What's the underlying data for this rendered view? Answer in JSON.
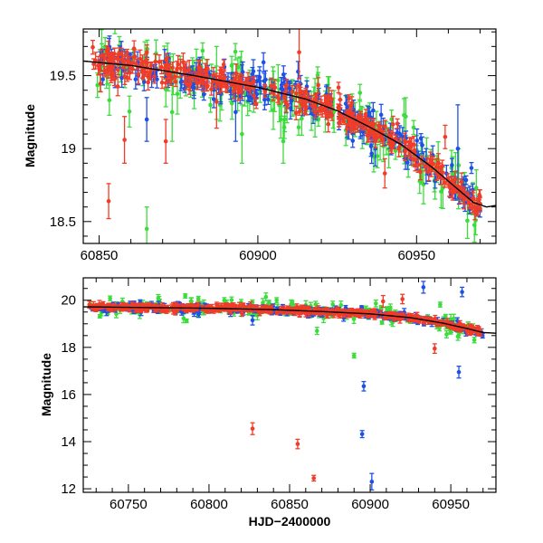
{
  "chart_data": [
    {
      "type": "scatter",
      "panel": "top",
      "ylabel": "Magnitude",
      "xlabel": "",
      "xlim": [
        60845,
        60975
      ],
      "ylim": [
        19.82,
        18.35
      ],
      "inverted_y": true,
      "x_ticks": [
        60850,
        60900,
        60950
      ],
      "y_ticks": [
        18.5,
        19,
        19.5
      ],
      "x_tick_labels": [
        "60850",
        "60900",
        "60950"
      ],
      "y_tick_labels": [
        "18.5",
        "19",
        "19.5"
      ],
      "colors": {
        "red": "#f03c28",
        "green": "#3cdc3c",
        "blue": "#1e50e6",
        "model": "#000000"
      },
      "model_curve": {
        "x": [
          60845,
          60860,
          60880,
          60900,
          60915,
          60925,
          60935,
          60945,
          60955,
          60962,
          60968,
          60972,
          60975
        ],
        "y": [
          19.6,
          19.57,
          19.5,
          19.42,
          19.34,
          19.26,
          19.15,
          19.03,
          18.87,
          18.74,
          18.63,
          18.6,
          18.61
        ]
      },
      "series": [
        {
          "name": "red",
          "n": 360,
          "scatter": 0.05,
          "err_base": 0.04,
          "outliers": [
            [
              60853,
              18.64,
              0.12
            ],
            [
              60858,
              19.06,
              0.16
            ],
            [
              60871,
              19.05,
              0.15
            ],
            [
              60887,
              19.32,
              0.18
            ],
            [
              60913,
              19.66,
              0.18
            ],
            [
              60940,
              18.83,
              0.1
            ],
            [
              60959,
              19.08,
              0.08
            ]
          ]
        },
        {
          "name": "green",
          "n": 170,
          "scatter": 0.1,
          "err_base": 0.09,
          "outliers": [
            [
              60865,
              18.45,
              0.15
            ],
            [
              60873,
              19.25,
              0.2
            ],
            [
              60887,
              19.45,
              0.25
            ],
            [
              60895,
              19.1,
              0.2
            ],
            [
              60908,
              19.05,
              0.15
            ],
            [
              60918,
              19.28,
              0.2
            ],
            [
              60928,
              19.22,
              0.15
            ]
          ]
        },
        {
          "name": "blue",
          "n": 230,
          "scatter": 0.06,
          "err_base": 0.05,
          "outliers": [
            [
              60865,
              19.2,
              0.15
            ],
            [
              60893,
              19.25,
              0.2
            ],
            [
              60937,
              19.0,
              0.12
            ],
            [
              60953,
              18.88,
              0.12
            ],
            [
              60963,
              19.0,
              0.3
            ]
          ]
        }
      ]
    },
    {
      "type": "scatter",
      "panel": "bottom",
      "ylabel": "Magnitude",
      "xlabel": "HJD−2400000",
      "xlim": [
        60722,
        60978
      ],
      "ylim": [
        20.95,
        11.85
      ],
      "inverted_y": true,
      "x_ticks": [
        60750,
        60800,
        60850,
        60900,
        60950
      ],
      "y_ticks": [
        12,
        14,
        16,
        18,
        20
      ],
      "x_tick_labels": [
        "60750",
        "60800",
        "60850",
        "60900",
        "60950"
      ],
      "y_tick_labels": [
        "12",
        "14",
        "16",
        "18",
        "20"
      ],
      "model_curve": {
        "x": [
          60722,
          60760,
          60800,
          60840,
          60870,
          60900,
          60925,
          60945,
          60960,
          60970,
          60978
        ],
        "y": [
          19.72,
          19.69,
          19.66,
          19.6,
          19.52,
          19.42,
          19.26,
          19.03,
          18.8,
          18.63,
          18.6
        ]
      },
      "series": [
        {
          "name": "red",
          "n": 420,
          "scatter": 0.06,
          "err_base": 0.1,
          "outliers": [
            [
              60827,
              14.55,
              0.25
            ],
            [
              60855,
              13.9,
              0.2
            ],
            [
              60865,
              12.45,
              0.12
            ],
            [
              60940,
              17.95,
              0.2
            ],
            [
              60908,
              19.95,
              0.25
            ],
            [
              60920,
              20.05,
              0.2
            ]
          ]
        },
        {
          "name": "green",
          "n": 180,
          "scatter": 0.18,
          "err_base": 0.12,
          "outliers": [
            [
              60890,
              17.65,
              0.1
            ],
            [
              60867,
              18.7,
              0.15
            ],
            [
              60950,
              19.2,
              0.2
            ]
          ]
        },
        {
          "name": "blue",
          "n": 240,
          "scatter": 0.1,
          "err_base": 0.1,
          "outliers": [
            [
              60895,
              14.32,
              0.15
            ],
            [
              60901,
              12.3,
              0.35
            ],
            [
              60896,
              16.35,
              0.2
            ],
            [
              60955,
              16.95,
              0.25
            ],
            [
              60933,
              20.55,
              0.25
            ],
            [
              60957,
              20.35,
              0.2
            ],
            [
              60827,
              19.15,
              0.2
            ]
          ]
        }
      ]
    }
  ]
}
